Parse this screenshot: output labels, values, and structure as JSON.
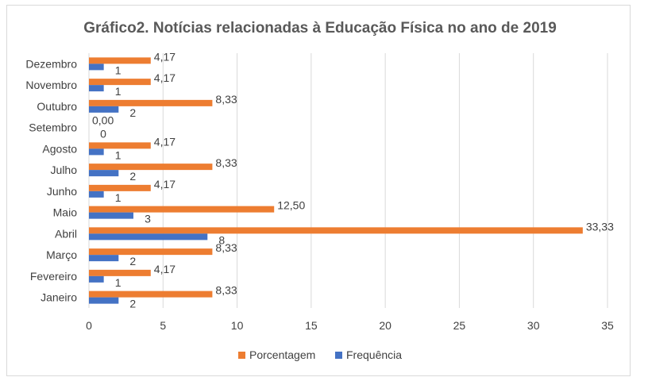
{
  "chart_data": {
    "type": "bar",
    "orientation": "horizontal",
    "title": "Gráfico2. Notícias relacionadas à Educação Física no ano de 2019",
    "categories": [
      "Janeiro",
      "Fevereiro",
      "Março",
      "Abril",
      "Maio",
      "Junho",
      "Julho",
      "Agosto",
      "Setembro",
      "Outubro",
      "Novembro",
      "Dezembro"
    ],
    "series": [
      {
        "name": "Porcentagem",
        "color": "#ED7D31",
        "values": [
          8.33,
          4.17,
          8.33,
          33.33,
          12.5,
          4.17,
          8.33,
          4.17,
          0,
          8.33,
          4.17,
          4.17
        ],
        "labels": [
          "8,33",
          "4,17",
          "8,33",
          "33,33",
          "12,50",
          "4,17",
          "8,33",
          "4,17",
          "0,00",
          "8,33",
          "4,17",
          "4,17"
        ]
      },
      {
        "name": "Frequência",
        "color": "#4472C4",
        "values": [
          2,
          1,
          2,
          8,
          3,
          1,
          2,
          1,
          0,
          2,
          1,
          1
        ],
        "labels": [
          "2",
          "1",
          "2",
          "8",
          "3",
          "1",
          "2",
          "1",
          "0",
          "2",
          "1",
          "1"
        ]
      }
    ],
    "xlim": [
      0,
      35
    ],
    "xticks": [
      "0",
      "5",
      "10",
      "15",
      "20",
      "25",
      "30",
      "35"
    ],
    "grid": "vertical",
    "legend": "bottom",
    "gridline_color": "#d9d9d9"
  }
}
